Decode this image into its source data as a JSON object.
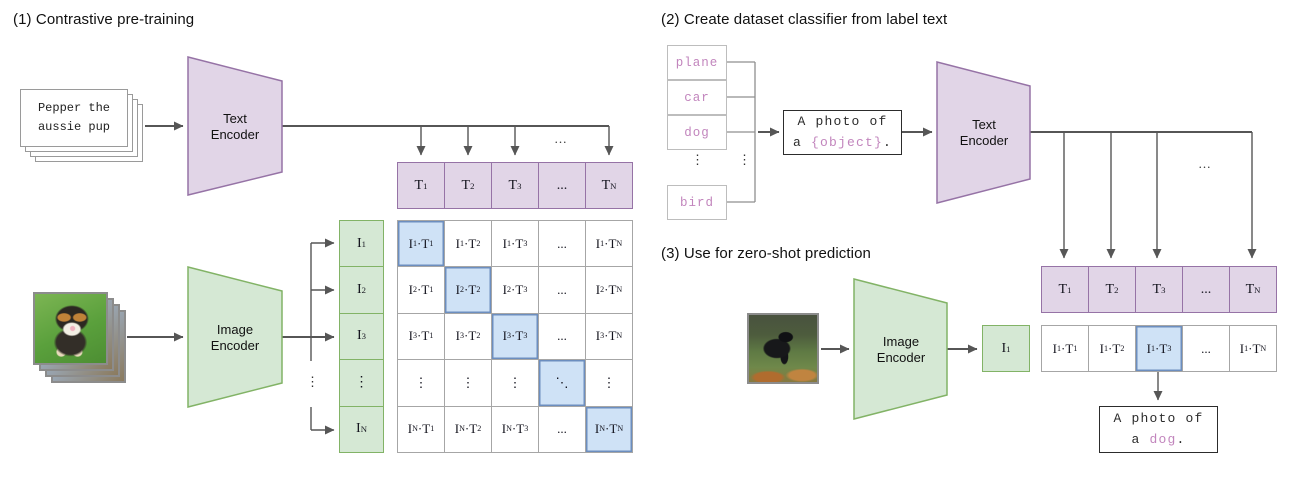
{
  "colors": {
    "purple_fill": "#e1d5e7",
    "purple_stroke": "#9673a6",
    "green_fill": "#d5e8d4",
    "green_stroke": "#82b366",
    "blue_fill": "#cfe2f6",
    "blue_stroke": "#6c8ebf",
    "grid_line": "#a6a6a6",
    "wire": "#565656",
    "pink_text": "#c285bd"
  },
  "section1": {
    "title": "(1) Contrastive pre-training",
    "text_card": "Pepper the\naussie pup",
    "text_encoder_label": "Text\nEncoder",
    "image_encoder_label": "Image\nEncoder",
    "ellipsis": "...",
    "bus_dots": "⋮",
    "t_row": [
      {
        "t": "T_1"
      },
      {
        "t": "T_2"
      },
      {
        "t": "T_3"
      },
      {
        "t": "..."
      },
      {
        "t": "T_N"
      }
    ],
    "i_col": [
      {
        "t": "I_1"
      },
      {
        "t": "I_2"
      },
      {
        "t": "I_3"
      },
      {
        "t": "⋮"
      },
      {
        "t": "I_N"
      }
    ],
    "matrix": [
      [
        {
          "t": "I_1·T_1",
          "hl": true
        },
        {
          "t": "I_1·T_2"
        },
        {
          "t": "I_1·T_3"
        },
        {
          "t": "..."
        },
        {
          "t": "I_1·T_N"
        }
      ],
      [
        {
          "t": "I_2·T_1"
        },
        {
          "t": "I_2·T_2",
          "hl": true
        },
        {
          "t": "I_2·T_3"
        },
        {
          "t": "..."
        },
        {
          "t": "I_2·T_N"
        }
      ],
      [
        {
          "t": "I_3·T_1"
        },
        {
          "t": "I_3·T_2"
        },
        {
          "t": "I_3·T_3",
          "hl": true
        },
        {
          "t": "..."
        },
        {
          "t": "I_3·T_N"
        }
      ],
      [
        {
          "t": "⋮"
        },
        {
          "t": "⋮"
        },
        {
          "t": "⋮"
        },
        {
          "t": "⋱",
          "hl": true
        },
        {
          "t": "⋮"
        }
      ],
      [
        {
          "t": "I_N·T_1"
        },
        {
          "t": "I_N·T_2"
        },
        {
          "t": "I_N·T_3"
        },
        {
          "t": "..."
        },
        {
          "t": "I_N·T_N",
          "hl": true
        }
      ]
    ]
  },
  "section2": {
    "title": "(2) Create dataset classifier from label text",
    "labels": [
      "plane",
      "car",
      "dog",
      "bird"
    ],
    "labels_dots": "⋮",
    "bus_dots": "⋮",
    "prompt_line1": "A photo of",
    "prompt_line2_pre": "a ",
    "prompt_object": "{object}",
    "prompt_line2_post": ".",
    "text_encoder_label": "Text\nEncoder",
    "ellipsis": "..."
  },
  "section3": {
    "title": "(3) Use for zero-shot prediction",
    "image_encoder_label": "Image\nEncoder",
    "i_box": "I_1",
    "t_row": [
      {
        "t": "T_1"
      },
      {
        "t": "T_2"
      },
      {
        "t": "T_3"
      },
      {
        "t": "..."
      },
      {
        "t": "T_N"
      }
    ],
    "score_row": [
      {
        "t": "I_1·T_1"
      },
      {
        "t": "I_1·T_2"
      },
      {
        "t": "I_1·T_3",
        "hl": true
      },
      {
        "t": "..."
      },
      {
        "t": "I_1·T_N"
      }
    ],
    "output_line1": "A photo of",
    "output_line2_pre": "a ",
    "output_object": "dog",
    "output_line2_post": "."
  }
}
